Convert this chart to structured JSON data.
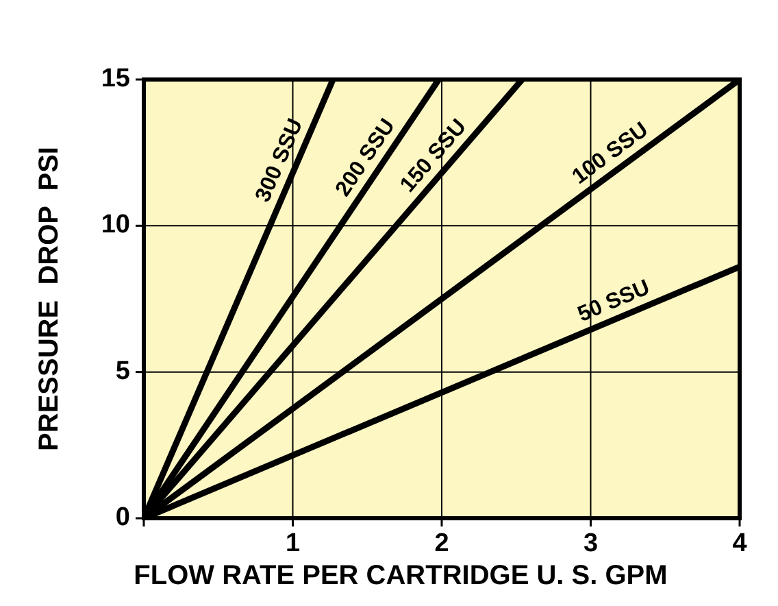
{
  "chart_data": {
    "type": "line",
    "xlabel": "FLOW RATE PER CARTRIDGE U. S. GPM",
    "ylabel": "PRESSURE  DROP  PSI",
    "xlim": [
      0,
      4
    ],
    "ylim": [
      0,
      15
    ],
    "xticks": [
      {
        "value": 0,
        "label": null
      },
      1,
      2,
      3,
      4
    ],
    "yticks": [
      0,
      5,
      10,
      15
    ],
    "grid": true,
    "marker": "none",
    "line_style": "solid",
    "series": [
      {
        "name": "300 SSU",
        "color": "#000000",
        "x": [
          0,
          1.27
        ],
        "values": [
          0,
          15
        ]
      },
      {
        "name": "200 SSU",
        "color": "#000000",
        "x": [
          0,
          1.98
        ],
        "values": [
          0,
          15
        ]
      },
      {
        "name": "150 SSU",
        "color": "#000000",
        "x": [
          0,
          2.54
        ],
        "values": [
          0,
          15
        ]
      },
      {
        "name": "100 SSU",
        "color": "#000000",
        "x": [
          0,
          4
        ],
        "values": [
          0,
          15
        ]
      },
      {
        "name": "50 SSU",
        "color": "#000000",
        "x": [
          0,
          4
        ],
        "values": [
          0,
          8.6
        ]
      }
    ]
  }
}
